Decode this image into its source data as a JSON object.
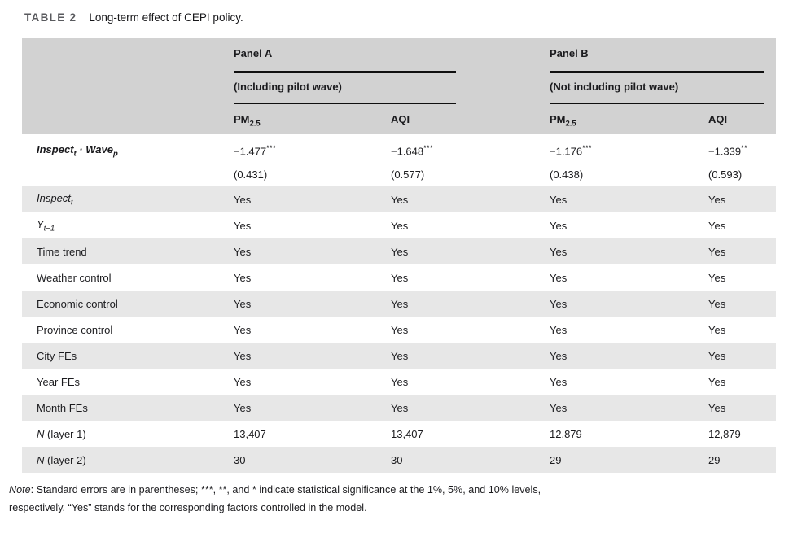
{
  "title": {
    "label": "TABLE 2",
    "caption": "Long-term effect of CEPI policy."
  },
  "table": {
    "panels": [
      {
        "name": "Panel A",
        "subtitle": "(Including pilot wave)",
        "cols": [
          {
            "base": "PM",
            "sub": "2.5"
          },
          {
            "base": "AQI"
          }
        ]
      },
      {
        "name": "Panel B",
        "subtitle": "(Not including pilot wave)",
        "cols": [
          {
            "base": "PM",
            "sub": "2.5"
          },
          {
            "base": "AQI"
          }
        ]
      }
    ],
    "rows": [
      {
        "label": [
          {
            "t": "Inspect",
            "it": true,
            "b": true
          },
          {
            "t": "t",
            "it": true,
            "b": true,
            "sub": true
          },
          {
            "t": " · ",
            "it": true,
            "b": true
          },
          {
            "t": "Wave",
            "it": true,
            "b": true
          },
          {
            "t": "p",
            "it": true,
            "b": true,
            "sub": true
          }
        ],
        "values": [
          {
            "v": "−1.477",
            "stars": "***"
          },
          {
            "v": "−1.648",
            "stars": "***"
          },
          {
            "v": "−1.176",
            "stars": "***"
          },
          {
            "v": "−1.339",
            "stars": "**"
          }
        ],
        "se": [
          "(0.431)",
          "(0.577)",
          "(0.438)",
          "(0.593)"
        ]
      },
      {
        "label": [
          {
            "t": "Inspect",
            "it": true
          },
          {
            "t": "t",
            "it": true,
            "sub": true
          }
        ],
        "values": [
          "Yes",
          "Yes",
          "Yes",
          "Yes"
        ],
        "shade": true
      },
      {
        "label": [
          {
            "t": "Y",
            "it": true
          },
          {
            "t": "t−1",
            "it": true,
            "sub": true
          }
        ],
        "values": [
          "Yes",
          "Yes",
          "Yes",
          "Yes"
        ],
        "shade": false
      },
      {
        "label": [
          {
            "t": "Time trend"
          }
        ],
        "values": [
          "Yes",
          "Yes",
          "Yes",
          "Yes"
        ],
        "shade": true
      },
      {
        "label": [
          {
            "t": "Weather control"
          }
        ],
        "values": [
          "Yes",
          "Yes",
          "Yes",
          "Yes"
        ],
        "shade": false
      },
      {
        "label": [
          {
            "t": "Economic control"
          }
        ],
        "values": [
          "Yes",
          "Yes",
          "Yes",
          "Yes"
        ],
        "shade": true
      },
      {
        "label": [
          {
            "t": "Province control"
          }
        ],
        "values": [
          "Yes",
          "Yes",
          "Yes",
          "Yes"
        ],
        "shade": false
      },
      {
        "label": [
          {
            "t": "City FEs"
          }
        ],
        "values": [
          "Yes",
          "Yes",
          "Yes",
          "Yes"
        ],
        "shade": true
      },
      {
        "label": [
          {
            "t": "Year FEs"
          }
        ],
        "values": [
          "Yes",
          "Yes",
          "Yes",
          "Yes"
        ],
        "shade": false
      },
      {
        "label": [
          {
            "t": "Month FEs"
          }
        ],
        "values": [
          "Yes",
          "Yes",
          "Yes",
          "Yes"
        ],
        "shade": true
      },
      {
        "label": [
          {
            "t": "N",
            "it": true
          },
          {
            "t": " (layer 1)"
          }
        ],
        "values": [
          "13,407",
          "13,407",
          "12,879",
          "12,879"
        ],
        "shade": false
      },
      {
        "label": [
          {
            "t": "N",
            "it": true
          },
          {
            "t": " (layer 2)"
          }
        ],
        "values": [
          "30",
          "30",
          "29",
          "29"
        ],
        "shade": true
      }
    ]
  },
  "note": {
    "label": "Note",
    "line1": ": Standard errors are in parentheses; ***, **, and * indicate statistical significance at the 1%, 5%, and 10% levels,",
    "line2": "respectively. “Yes” stands for the corresponding factors controlled in the model."
  },
  "colors": {
    "header_gray": "#d2d2d2",
    "stripe_gray": "#e7e7e7",
    "rule_black": "#0f0f0f",
    "title_gray": "#595a5e",
    "text": "#1b1b1e"
  }
}
